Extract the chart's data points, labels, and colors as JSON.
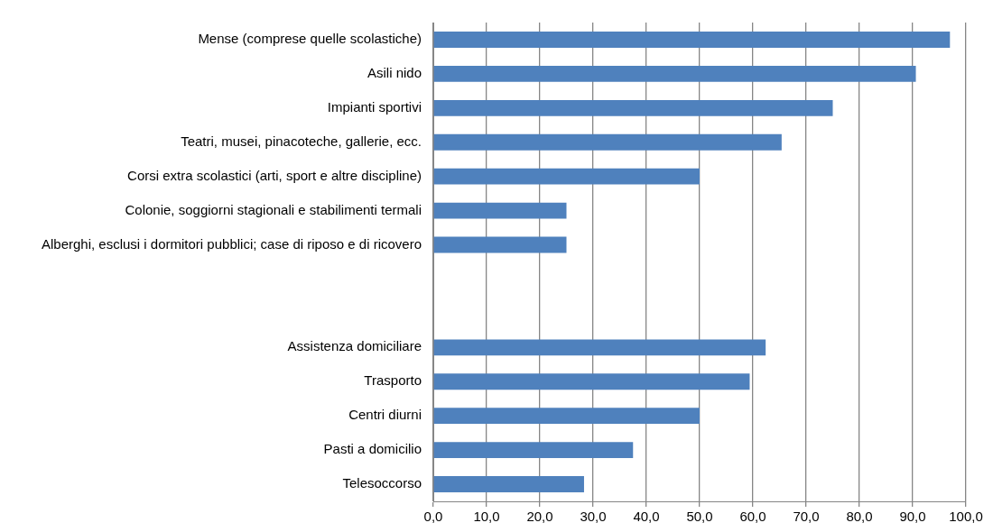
{
  "chart_data": {
    "type": "bar",
    "orientation": "horizontal",
    "categories": [
      "Mense (comprese quelle scolastiche)",
      "Asili nido",
      "Impianti sportivi",
      "Teatri, musei, pinacoteche, gallerie, ecc.",
      "Corsi extra scolastici (arti, sport e altre discipline)",
      "Colonie, soggiorni stagionali e stabilimenti termali",
      "Alberghi, esclusi i dormitori pubblici; case di riposo e di ricovero",
      null,
      null,
      "Assistenza domiciliare",
      "Trasporto",
      "Centri diurni",
      "Pasti a domicilio",
      "Telesoccorso"
    ],
    "values": [
      97,
      90.6,
      75,
      65.4,
      50,
      25,
      25,
      null,
      null,
      62.4,
      59.4,
      50,
      37.5,
      28.3
    ],
    "color": "#4f81bd",
    "xlim": [
      0,
      100
    ],
    "xticks": [
      {
        "value": 0,
        "label": "0,0"
      },
      {
        "value": 10,
        "label": "10,0"
      },
      {
        "value": 20,
        "label": "20,0"
      },
      {
        "value": 30,
        "label": "30,0"
      },
      {
        "value": 40,
        "label": "40,0"
      },
      {
        "value": 50,
        "label": "50,0"
      },
      {
        "value": 60,
        "label": "60,0"
      },
      {
        "value": 70,
        "label": "70,0"
      },
      {
        "value": 80,
        "label": "80,0"
      },
      {
        "value": 90,
        "label": "90,0"
      },
      {
        "value": 100,
        "label": "100,0"
      }
    ],
    "grid": "x",
    "legend": false
  }
}
